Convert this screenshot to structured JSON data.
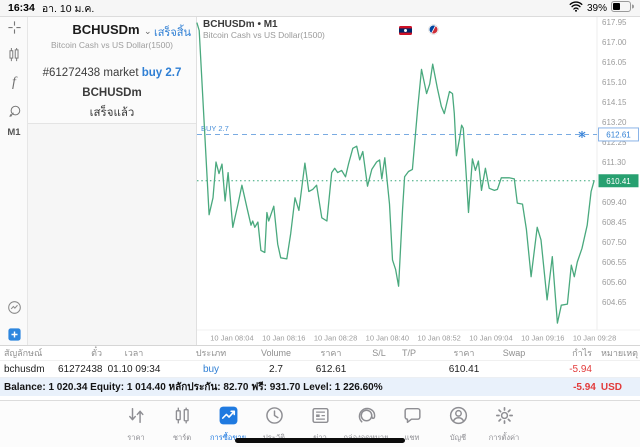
{
  "status_bar": {
    "time": "16:34",
    "date": "อา. 10 ม.ค.",
    "battery_percent": "39%"
  },
  "left_toolbar": {
    "timeframe_label": "M1"
  },
  "order_panel": {
    "symbol": "BCHUSDm",
    "done_button": "เสร็จสิ้น",
    "subtitle": "Bitcoin Cash vs US Dollar(1500)",
    "order_id_line": "#61272438 market",
    "order_action": "buy 2.7",
    "order_symbol": "BCHUSDm",
    "order_status": "เสร็จแล้ว"
  },
  "chart_header": {
    "title": "BCHUSDm • M1",
    "subtitle": "Bitcoin Cash vs US Dollar(1500)"
  },
  "chart_data": {
    "type": "line",
    "title": "BCHUSDm M1",
    "series_name": "BCHUSDm",
    "x_unit": "minutes since 10 Jan 07:56",
    "x_domain": [
      0,
      92.2
    ],
    "x_ticks": [
      {
        "m": 8.1,
        "label": "10 Jan 08:04"
      },
      {
        "m": 20.1,
        "label": "10 Jan 08:16"
      },
      {
        "m": 32.1,
        "label": "10 Jan 08:28"
      },
      {
        "m": 44.1,
        "label": "10 Jan 08:40"
      },
      {
        "m": 56.1,
        "label": "10 Jan 08:52"
      },
      {
        "m": 68.1,
        "label": "10 Jan 09:04"
      },
      {
        "m": 80.1,
        "label": "10 Jan 09:16"
      },
      {
        "m": 92.1,
        "label": "10 Jan 09:28"
      }
    ],
    "y_domain": [
      603.32,
      618.19
    ],
    "y_ticks": [
      "617.95",
      "617.00",
      "616.05",
      "615.10",
      "614.15",
      "613.20",
      "612.25",
      "611.30",
      "609.40",
      "608.45",
      "607.50",
      "606.55",
      "605.60",
      "604.65"
    ],
    "buy_line": {
      "price": 612.61,
      "label": "BUY 2.7",
      "price_label": "612.61",
      "color": "#3f87d9"
    },
    "current_price": {
      "price": 610.41,
      "label": "610.41",
      "color": "#27a070"
    },
    "line_color": "#4aa97e",
    "points": [
      [
        0,
        617.9
      ],
      [
        0.5,
        617.55
      ],
      [
        2.8,
        608.8
      ],
      [
        3.7,
        609.6
      ],
      [
        4.4,
        611.3
      ],
      [
        5.1,
        610.75
      ],
      [
        5.8,
        611.2
      ],
      [
        6.5,
        609.45
      ],
      [
        7.2,
        610.8
      ],
      [
        8.3,
        608.2
      ],
      [
        9.5,
        609.3
      ],
      [
        10.4,
        610.2
      ],
      [
        11.6,
        609.1
      ],
      [
        12.5,
        608.3
      ],
      [
        12.9,
        608.5
      ],
      [
        13.4,
        608.2
      ],
      [
        14.1,
        608.45
      ],
      [
        14.8,
        607.1
      ],
      [
        15.7,
        607.0
      ],
      [
        16.2,
        608.9
      ],
      [
        16.6,
        608.5
      ],
      [
        17.8,
        609.2
      ],
      [
        18.7,
        607.4
      ],
      [
        19.4,
        606.75
      ],
      [
        20.8,
        606.7
      ],
      [
        21.7,
        607.9
      ],
      [
        22.7,
        609.6
      ],
      [
        23.6,
        609.0
      ],
      [
        25.0,
        611.25
      ],
      [
        25.9,
        609.9
      ],
      [
        26.8,
        610.0
      ],
      [
        27.7,
        610.2
      ],
      [
        28.9,
        608.65
      ],
      [
        30.1,
        608.5
      ],
      [
        31.2,
        610.8
      ],
      [
        31.9,
        611.0
      ],
      [
        32.6,
        610.8
      ],
      [
        33.5,
        610.9
      ],
      [
        34.4,
        610.6
      ],
      [
        35.1,
        611.2
      ],
      [
        36.1,
        611.95
      ],
      [
        37.0,
        612.05
      ],
      [
        37.7,
        611.4
      ],
      [
        38.4,
        611.8
      ],
      [
        39.5,
        610.15
      ],
      [
        40.5,
        610.95
      ],
      [
        41.6,
        611.3
      ],
      [
        42.3,
        611.4
      ],
      [
        42.8,
        610.5
      ],
      [
        43.5,
        611.5
      ],
      [
        44.6,
        609.3
      ],
      [
        45.3,
        606.65
      ],
      [
        46.0,
        606.2
      ],
      [
        46.7,
        605.4
      ],
      [
        47.6,
        609.0
      ],
      [
        48.1,
        610.6
      ],
      [
        49.0,
        610.85
      ],
      [
        49.9,
        610.95
      ],
      [
        51.1,
        613.8
      ],
      [
        52.0,
        615.7
      ],
      [
        53.2,
        614.55
      ],
      [
        53.9,
        615.0
      ],
      [
        54.6,
        615.95
      ],
      [
        55.7,
        614.8
      ],
      [
        56.6,
        613.95
      ],
      [
        57.3,
        613.6
      ],
      [
        58.5,
        614.65
      ],
      [
        59.2,
        614.55
      ],
      [
        59.6,
        613.6
      ],
      [
        60.1,
        611.6
      ],
      [
        60.8,
        612.4
      ],
      [
        61.3,
        613.05
      ],
      [
        61.7,
        612.9
      ],
      [
        62.4,
        610.55
      ],
      [
        62.9,
        608.9
      ],
      [
        63.8,
        611.45
      ],
      [
        64.5,
        610.9
      ],
      [
        65.2,
        611.35
      ],
      [
        65.9,
        609.95
      ],
      [
        66.8,
        611.0
      ],
      [
        67.7,
        610.05
      ],
      [
        68.9,
        609.95
      ],
      [
        69.6,
        610.0
      ],
      [
        70.5,
        610.55
      ],
      [
        72.3,
        610.55
      ],
      [
        73.5,
        610.5
      ],
      [
        74.2,
        609.35
      ],
      [
        75.4,
        609.3
      ],
      [
        76.3,
        608.1
      ],
      [
        77.4,
        605.85
      ],
      [
        78.8,
        608.2
      ],
      [
        79.7,
        607.6
      ],
      [
        81.1,
        604.75
      ],
      [
        82.3,
        606.8
      ],
      [
        83.5,
        603.65
      ],
      [
        84.4,
        604.5
      ],
      [
        85.8,
        604.55
      ],
      [
        86.7,
        606.4
      ],
      [
        87.4,
        605.85
      ],
      [
        88.1,
        606.55
      ],
      [
        89.2,
        607.2
      ],
      [
        90.4,
        608.3
      ],
      [
        91.3,
        609.9
      ],
      [
        92.0,
        610.41
      ]
    ]
  },
  "positions": {
    "headers": [
      "สัญลักษณ์",
      "ตั๋ว",
      "เวลา",
      "ประเภท",
      "Volume",
      "ราคา",
      "S/L",
      "T/P",
      "ราคา",
      "Swap",
      "กำไร",
      "หมายเหตุ"
    ],
    "row_cells": [
      "bchusdm",
      "61272438",
      "01.10 09:34",
      "buy",
      "2.7",
      "612.61",
      "",
      "",
      "610.41",
      "",
      "-5.94",
      ""
    ],
    "summary_text": "Balance: 1 020.34 Equity: 1 014.40 หลักประกัน: 82.70 ฟรี: 931.70 Level: 1 226.60%",
    "summary_profit": "-5.94",
    "summary_currency": "USD"
  },
  "tab_bar": {
    "items": [
      {
        "label": "ราคา",
        "icon": "quotes-icon",
        "active": false
      },
      {
        "label": "ชาร์ต",
        "icon": "chart-icon",
        "active": false
      },
      {
        "label": "การซื้อขาย",
        "icon": "trade-icon",
        "active": true
      },
      {
        "label": "ประวัติ",
        "icon": "history-icon",
        "active": false
      },
      {
        "label": "ข่าว",
        "icon": "news-icon",
        "active": false
      },
      {
        "label": "กล่องจดหมาย",
        "icon": "mailbox-icon",
        "active": false
      },
      {
        "label": "แชท",
        "icon": "chat-icon",
        "active": false
      },
      {
        "label": "บัญชี",
        "icon": "account-icon",
        "active": false
      },
      {
        "label": "การตั้งค่า",
        "icon": "settings-icon",
        "active": false
      }
    ]
  },
  "colors": {
    "accent_blue": "#2f7fd4",
    "profit_red": "#e23b3b",
    "line_green": "#4aa97e",
    "price_tag_green": "#27a070"
  }
}
